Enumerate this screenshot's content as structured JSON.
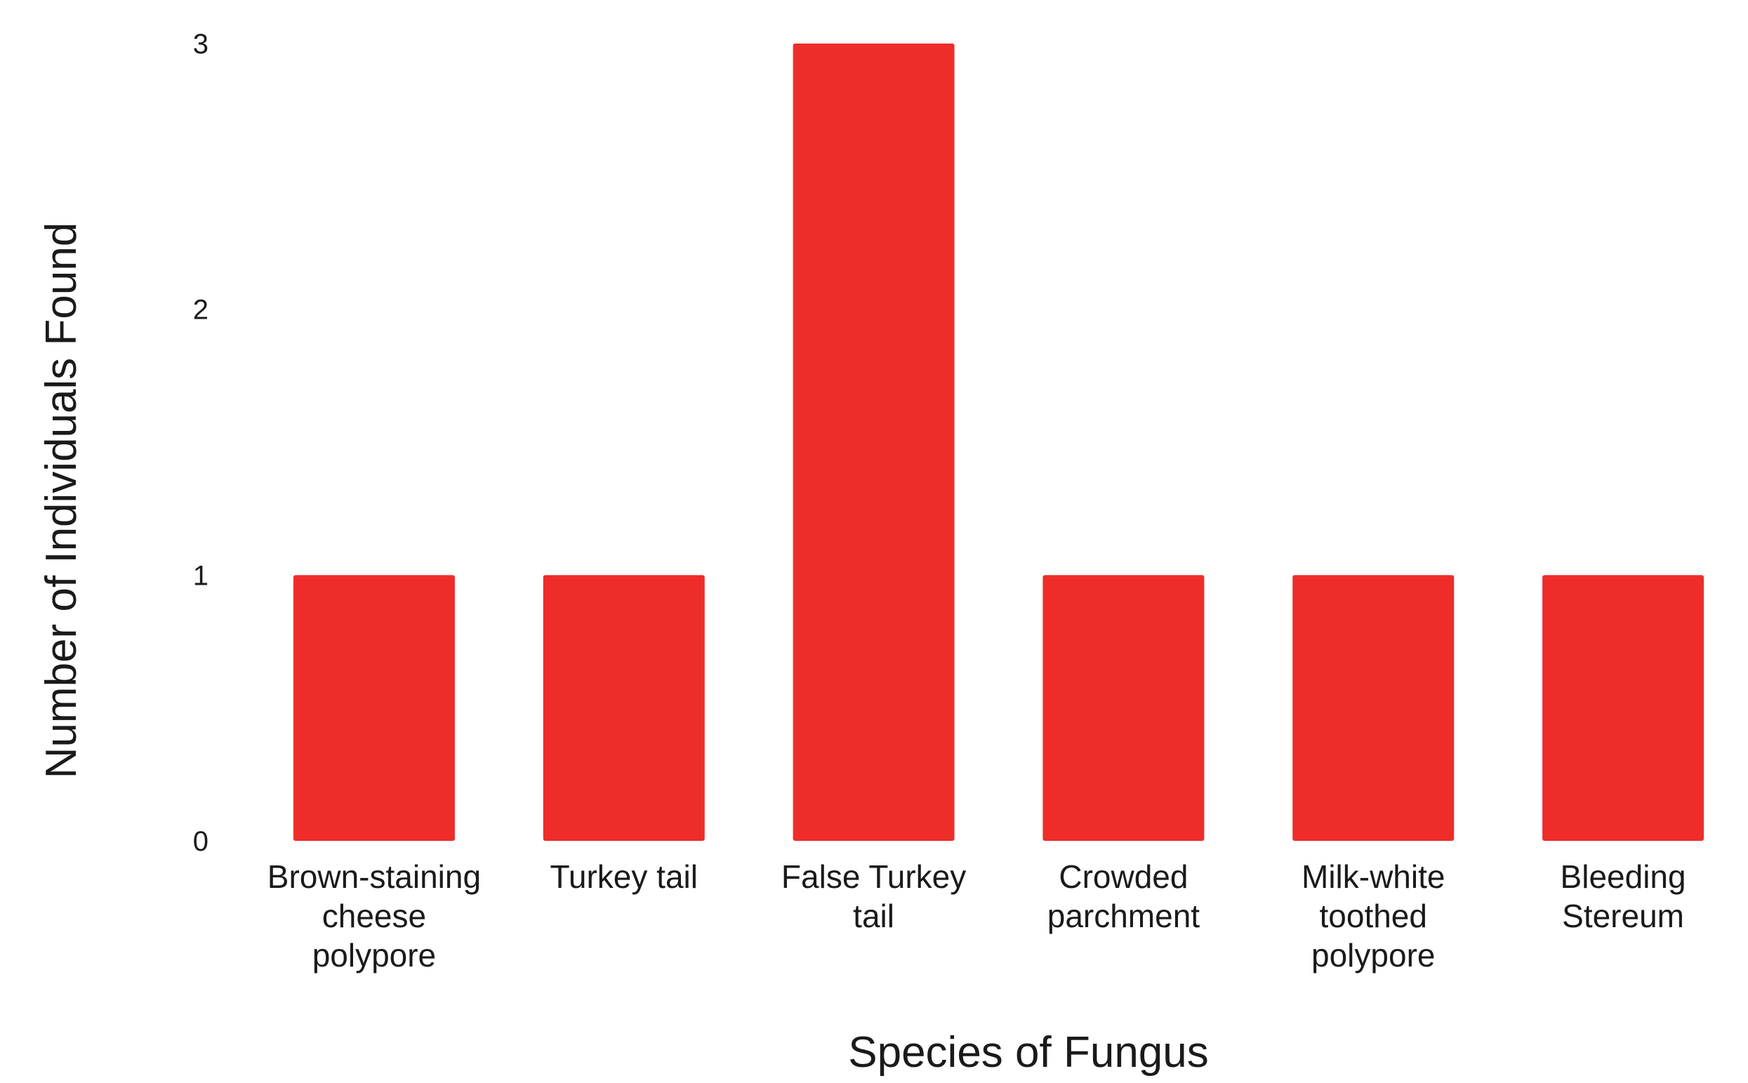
{
  "chart_data": {
    "type": "bar",
    "categories": [
      [
        "Brown-staining",
        "cheese",
        "polypore"
      ],
      [
        "Turkey tail"
      ],
      [
        "False Turkey",
        "tail"
      ],
      [
        "Crowded",
        "parchment"
      ],
      [
        "Milk-white",
        "toothed",
        "polypore"
      ],
      [
        "Bleeding",
        "Stereum"
      ]
    ],
    "values": [
      1,
      1,
      3,
      1,
      1,
      1
    ],
    "xlabel": "Species of Fungus",
    "ylabel": "Number of Individuals Found",
    "ylim": [
      0,
      3
    ],
    "yticks": [
      0,
      1,
      2,
      3
    ],
    "grid": false,
    "bar_color": "#ee2d2a",
    "text_color": "#1a1a1a"
  }
}
